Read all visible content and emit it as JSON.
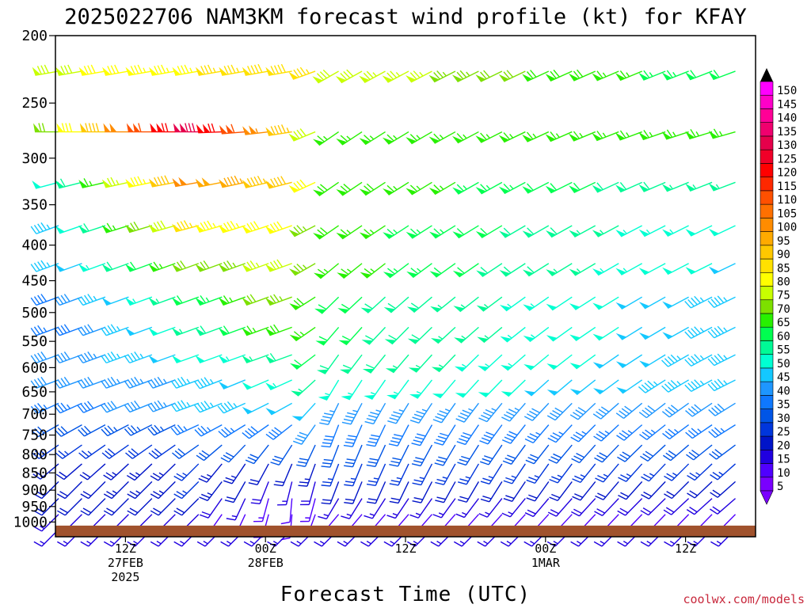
{
  "chart_data": {
    "type": "wind-barb-time-height",
    "title": "2025022706 NAM3KM forecast wind profile (kt) for KFAY",
    "xlabel": "Forecast Time (UTC)",
    "ylabel": "",
    "credit": "coolwx.com/models",
    "y_axis": {
      "scale": "log",
      "unit": "hPa",
      "range": [
        1050,
        200
      ],
      "ticks": [
        200,
        250,
        300,
        350,
        400,
        450,
        500,
        550,
        600,
        650,
        700,
        750,
        800,
        850,
        900,
        950,
        1000
      ]
    },
    "x_axis": {
      "unit": "forecast hour",
      "range": [
        0,
        60
      ],
      "ticks": [
        {
          "hour": 6,
          "lines": [
            "12Z",
            "27FEB",
            "2025"
          ]
        },
        {
          "hour": 18,
          "lines": [
            "00Z",
            "28FEB"
          ]
        },
        {
          "hour": 30,
          "lines": [
            "12Z"
          ]
        },
        {
          "hour": 42,
          "lines": [
            "00Z",
            "1MAR"
          ]
        },
        {
          "hour": 54,
          "lines": [
            "12Z"
          ]
        }
      ]
    },
    "colorbar": {
      "labels": [
        5,
        10,
        15,
        20,
        25,
        30,
        35,
        40,
        45,
        50,
        55,
        60,
        65,
        70,
        75,
        80,
        85,
        90,
        95,
        100,
        105,
        110,
        115,
        120,
        125,
        130,
        135,
        140,
        145,
        150
      ],
      "colors": [
        "#7a00ff",
        "#5000ff",
        "#2000e0",
        "#0014c8",
        "#0036dc",
        "#0055e6",
        "#0f78ff",
        "#1e96ff",
        "#14c8ff",
        "#00ffd2",
        "#00fa96",
        "#00ff50",
        "#28f000",
        "#7de000",
        "#c8ff00",
        "#ffff00",
        "#ffe100",
        "#ffc800",
        "#ffaa00",
        "#ff8c00",
        "#ff7000",
        "#ff5000",
        "#ff2800",
        "#ff0000",
        "#f00028",
        "#e6004b",
        "#f0006e",
        "#ff0096",
        "#ff00c8",
        "#ff00ff"
      ]
    },
    "terrain": {
      "color": "#a0522d",
      "surface_pressure_hpa": 1012
    },
    "barb_interval_hours": 2,
    "pressure_levels": [
      225,
      275,
      325,
      375,
      425,
      475,
      525,
      575,
      625,
      675,
      725,
      775,
      825,
      875,
      925,
      975,
      1025
    ],
    "wind_profile": [
      {
        "p": 225,
        "times": [
          0,
          21,
          23,
          60
        ],
        "speed": [
          78,
          90,
          80,
          60
        ],
        "direction": [
          260,
          260,
          240,
          250
        ]
      },
      {
        "p": 275,
        "times": [
          0,
          12,
          21,
          23,
          60
        ],
        "speed": [
          72,
          130,
          90,
          65,
          65
        ],
        "direction": [
          270,
          270,
          260,
          235,
          255
        ]
      },
      {
        "p": 325,
        "times": [
          0,
          12,
          21,
          23,
          60
        ],
        "speed": [
          50,
          100,
          90,
          70,
          55
        ],
        "direction": [
          255,
          260,
          255,
          235,
          250
        ]
      },
      {
        "p": 375,
        "times": [
          0,
          12,
          21,
          23,
          60
        ],
        "speed": [
          45,
          85,
          80,
          68,
          50
        ],
        "direction": [
          250,
          255,
          250,
          235,
          245
        ]
      },
      {
        "p": 425,
        "times": [
          0,
          12,
          21,
          23,
          60
        ],
        "speed": [
          45,
          70,
          80,
          68,
          48
        ],
        "direction": [
          250,
          250,
          250,
          230,
          245
        ]
      },
      {
        "p": 475,
        "times": [
          0,
          12,
          21,
          23,
          60
        ],
        "speed": [
          38,
          60,
          75,
          62,
          45
        ],
        "direction": [
          250,
          250,
          250,
          225,
          245
        ]
      },
      {
        "p": 525,
        "times": [
          0,
          12,
          21,
          23,
          60
        ],
        "speed": [
          35,
          55,
          70,
          62,
          45
        ],
        "direction": [
          250,
          250,
          250,
          220,
          245
        ]
      },
      {
        "p": 575,
        "times": [
          0,
          12,
          21,
          23,
          60
        ],
        "speed": [
          40,
          50,
          60,
          60,
          45
        ],
        "direction": [
          250,
          250,
          250,
          215,
          245
        ]
      },
      {
        "p": 625,
        "times": [
          0,
          12,
          21,
          23,
          60
        ],
        "speed": [
          40,
          45,
          55,
          55,
          45
        ],
        "direction": [
          250,
          250,
          245,
          210,
          245
        ]
      },
      {
        "p": 675,
        "times": [
          0,
          12,
          21,
          23,
          60
        ],
        "speed": [
          35,
          45,
          50,
          45,
          40
        ],
        "direction": [
          245,
          250,
          240,
          205,
          240
        ]
      },
      {
        "p": 725,
        "times": [
          0,
          12,
          21,
          23,
          60
        ],
        "speed": [
          30,
          35,
          40,
          40,
          35
        ],
        "direction": [
          240,
          245,
          230,
          200,
          240
        ]
      },
      {
        "p": 775,
        "times": [
          0,
          12,
          21,
          23,
          60
        ],
        "speed": [
          25,
          30,
          30,
          30,
          30
        ],
        "direction": [
          235,
          235,
          210,
          200,
          235
        ]
      },
      {
        "p": 825,
        "times": [
          0,
          12,
          21,
          23,
          60
        ],
        "speed": [
          20,
          25,
          20,
          25,
          25
        ],
        "direction": [
          230,
          225,
          200,
          200,
          230
        ]
      },
      {
        "p": 875,
        "times": [
          0,
          12,
          21,
          23,
          60
        ],
        "speed": [
          20,
          25,
          15,
          20,
          20
        ],
        "direction": [
          225,
          225,
          190,
          200,
          230
        ]
      },
      {
        "p": 925,
        "times": [
          0,
          12,
          21,
          23,
          60
        ],
        "speed": [
          20,
          20,
          10,
          15,
          20
        ],
        "direction": [
          225,
          225,
          180,
          210,
          230
        ]
      },
      {
        "p": 975,
        "times": [
          0,
          12,
          21,
          23,
          60
        ],
        "speed": [
          15,
          15,
          10,
          10,
          15
        ],
        "direction": [
          225,
          225,
          180,
          220,
          225
        ]
      },
      {
        "p": 1025,
        "times": [
          0,
          60
        ],
        "speed": [
          15,
          15
        ],
        "direction": [
          225,
          225
        ]
      }
    ]
  }
}
